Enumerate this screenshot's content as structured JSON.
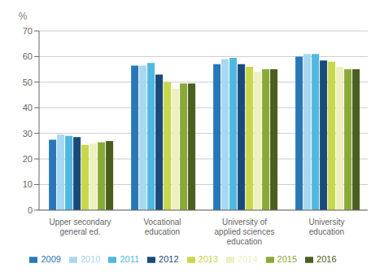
{
  "chart_data": {
    "type": "bar",
    "y_label": "%",
    "categories": [
      "Upper secondary\ngeneral ed.",
      "Vocational\neducation",
      "University of\napplied sciences\neducation",
      "University\neducation"
    ],
    "series": [
      {
        "name": "2009",
        "color": "#2878b8",
        "values": [
          27.5,
          56.5,
          57.0,
          60.0
        ]
      },
      {
        "name": "2010",
        "color": "#a8d8f0",
        "values": [
          29.5,
          56.5,
          59.0,
          61.0
        ]
      },
      {
        "name": "2011",
        "color": "#50b8e0",
        "values": [
          29.0,
          57.5,
          59.5,
          61.0
        ]
      },
      {
        "name": "2012",
        "color": "#1a4a7a",
        "values": [
          28.5,
          53.0,
          57.0,
          58.5
        ]
      },
      {
        "name": "2013",
        "color": "#c8d84a",
        "values": [
          25.5,
          50.0,
          56.0,
          58.0
        ]
      },
      {
        "name": "2014",
        "color": "#eef0c0",
        "values": [
          26.0,
          47.5,
          54.0,
          56.0
        ]
      },
      {
        "name": "2015",
        "color": "#8aaa38",
        "values": [
          26.5,
          49.5,
          55.0,
          55.0
        ]
      },
      {
        "name": "2016",
        "color": "#4a5e20",
        "values": [
          27.0,
          49.5,
          55.0,
          55.0
        ]
      }
    ],
    "ylim": [
      0,
      70
    ],
    "yticks": [
      0,
      10,
      20,
      30,
      40,
      50,
      60,
      70
    ],
    "grid": true,
    "legend": "bottom"
  }
}
